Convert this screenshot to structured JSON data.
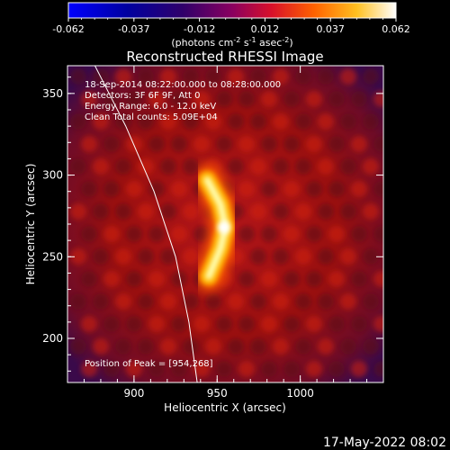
{
  "chart_data": {
    "type": "heatmap",
    "title": "Reconstructed RHESSI Image",
    "xlabel": "Heliocentric X (arcsec)",
    "ylabel": "Heliocentric Y (arcsec)",
    "xlim": [
      860,
      1050
    ],
    "ylim": [
      173,
      367
    ],
    "x_ticks": [
      900,
      950,
      1000
    ],
    "y_ticks": [
      200,
      250,
      300,
      350
    ],
    "colorbar": {
      "ticks": [
        "-0.062",
        "-0.037",
        "-0.012",
        "0.012",
        "0.037",
        "0.062"
      ],
      "range": [
        -0.062,
        0.062
      ],
      "label_main": "(photons cm",
      "label_sup1": "-2",
      "label_mid": " s",
      "label_sup2": "-1",
      "label_end": " asec",
      "label_sup3": "-2",
      "label_close": ")"
    },
    "annotations": [
      "18-Sep-2014 08:22:00.000 to 08:28:00.000",
      "Detectors: 3F 6F 9F, Att 0",
      "Energy Range: 6.0 - 12.0 keV",
      "Clean    Total counts: 5.09E+04"
    ],
    "peak_text": "Position of Peak = [954,268]",
    "source": {
      "peak_x": 954,
      "peak_y": 268,
      "arc_points": [
        [
          945,
          238
        ],
        [
          952,
          255
        ],
        [
          955,
          268
        ],
        [
          952,
          282
        ],
        [
          944,
          297
        ]
      ]
    },
    "limb_line": [
      [
        875,
        370
      ],
      [
        895,
        330
      ],
      [
        912,
        290
      ],
      [
        925,
        250
      ],
      [
        933,
        210
      ],
      [
        938,
        173
      ]
    ],
    "footer_date": "17-May-2022 08:02"
  }
}
